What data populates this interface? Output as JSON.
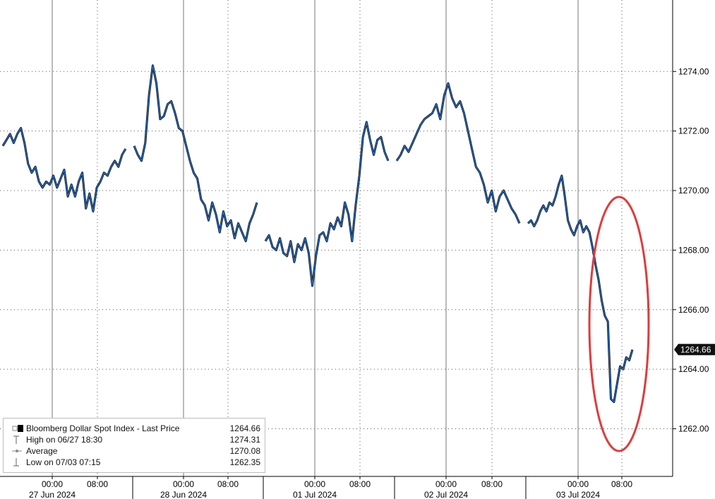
{
  "chart_data": {
    "type": "line",
    "title": "",
    "xlabel": "",
    "ylabel": "",
    "ylim": [
      1260.4,
      1276.4
    ],
    "y_ticks": [
      "1262.00",
      "1264.00",
      "1266.00",
      "1268.00",
      "1270.00",
      "1272.00",
      "1274.00"
    ],
    "x_tick_labels": [
      {
        "time": "00:00",
        "day": "27 Jun 2024"
      },
      {
        "time": "08:00",
        "day": ""
      },
      {
        "time": "00:00",
        "day": "28 Jun 2024"
      },
      {
        "time": "08:00",
        "day": ""
      },
      {
        "time": "00:00",
        "day": "01 Jul 2024"
      },
      {
        "time": "08:00",
        "day": ""
      },
      {
        "time": "00:00",
        "day": "02 Jul 2024"
      },
      {
        "time": "08:00",
        "day": ""
      },
      {
        "time": "00:00",
        "day": "03 Jul 2024"
      },
      {
        "time": "08:00",
        "day": ""
      }
    ],
    "last_price_label": "1264.66",
    "series": [
      {
        "name": "Bloomberg Dollar Spot Index - Last Price",
        "color": "#1f6fd0",
        "segments": [
          {
            "day": "27 Jun 2024",
            "values": [
              1271.5,
              1271.7,
              1271.9,
              1271.6,
              1271.9,
              1272.1,
              1271.6,
              1270.9,
              1270.6,
              1270.8,
              1270.3,
              1270.1,
              1270.3,
              1270.2,
              1270.5,
              1270.1,
              1270.4,
              1270.7,
              1269.8,
              1270.2,
              1269.8,
              1270.3,
              1270.6,
              1269.4,
              1269.9,
              1269.3,
              1270.1,
              1270.3,
              1270.6,
              1270.5,
              1270.8,
              1271.0,
              1270.8,
              1271.2,
              1271.4
            ]
          },
          {
            "day": "28 Jun 2024",
            "values": [
              1271.5,
              1271.2,
              1271.0,
              1271.6,
              1273.2,
              1274.2,
              1273.6,
              1272.4,
              1272.5,
              1272.9,
              1273.0,
              1272.6,
              1272.1,
              1272.0,
              1271.5,
              1271.0,
              1270.6,
              1270.4,
              1269.7,
              1269.5,
              1269.0,
              1269.6,
              1269.2,
              1268.6,
              1269.3,
              1268.8,
              1269.0,
              1268.4,
              1268.9,
              1268.6,
              1268.3,
              1268.9,
              1269.2,
              1269.6
            ]
          },
          {
            "day": "01 Jul 2024",
            "values": [
              1268.3,
              1268.5,
              1268.1,
              1268.0,
              1268.4,
              1267.9,
              1267.8,
              1268.3,
              1267.6,
              1268.2,
              1268.0,
              1268.4,
              1267.9,
              1266.8,
              1267.8,
              1268.5,
              1268.6,
              1268.3,
              1268.9,
              1268.7,
              1269.1,
              1268.8,
              1269.6,
              1269.2,
              1268.3,
              1269.5,
              1270.5,
              1271.8,
              1272.3,
              1271.7,
              1271.2,
              1271.7,
              1271.8,
              1271.3,
              1271.0
            ]
          },
          {
            "day": "02 Jul 2024",
            "values": [
              1271.0,
              1271.2,
              1271.5,
              1271.3,
              1271.6,
              1271.9,
              1272.2,
              1272.4,
              1272.5,
              1272.6,
              1272.9,
              1272.4,
              1273.2,
              1273.6,
              1273.1,
              1272.8,
              1273.0,
              1272.6,
              1272.0,
              1271.4,
              1270.8,
              1270.6,
              1270.2,
              1269.6,
              1270.0,
              1269.3,
              1269.8,
              1270.0,
              1269.7,
              1269.4,
              1269.2,
              1268.9
            ]
          },
          {
            "day": "03 Jul 2024",
            "values": [
              1268.9,
              1269.0,
              1268.8,
              1269.0,
              1269.3,
              1269.5,
              1269.3,
              1269.6,
              1269.5,
              1269.8,
              1270.2,
              1270.5,
              1269.8,
              1269.0,
              1268.7,
              1268.5,
              1268.8,
              1269.0,
              1268.6,
              1268.8,
              1268.6,
              1268.1,
              1267.5,
              1267.0,
              1266.3,
              1265.8,
              1265.6,
              1263.0,
              1262.9,
              1263.5,
              1264.1,
              1264.0,
              1264.4,
              1264.3,
              1264.66
            ]
          }
        ]
      }
    ],
    "legend": [
      {
        "label": "Bloomberg Dollar Spot Index - Last Price",
        "value": "1264.66"
      },
      {
        "label": "High on 06/27 18:30",
        "value": "1274.31"
      },
      {
        "label": "Average",
        "value": "1270.08"
      },
      {
        "label": "Low on 07/03 07:15",
        "value": "1262.35"
      }
    ],
    "legend_placement": "bottom-left",
    "grid": true,
    "annotation": {
      "shape": "ellipse",
      "color": "#e03b3b",
      "note": ""
    }
  }
}
